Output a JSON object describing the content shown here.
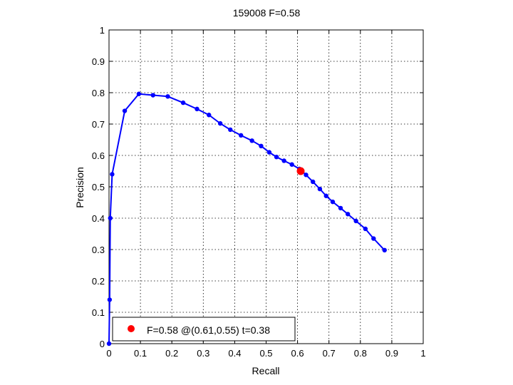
{
  "chart_data": {
    "type": "line",
    "title": "159008 F=0.58",
    "xlabel": "Recall",
    "ylabel": "Precision",
    "xlim": [
      0,
      1
    ],
    "ylim": [
      0,
      1
    ],
    "grid": true,
    "legend_position": "bottom-left",
    "x_ticks": [
      "0",
      "0.1",
      "0.2",
      "0.3",
      "0.4",
      "0.5",
      "0.6",
      "0.7",
      "0.8",
      "0.9",
      "1"
    ],
    "y_ticks": [
      "0",
      "0.1",
      "0.2",
      "0.3",
      "0.4",
      "0.5",
      "0.6",
      "0.7",
      "0.8",
      "0.9",
      "1"
    ],
    "series": [
      {
        "color": "#0000ff",
        "x": [
          0.0,
          0.002,
          0.004,
          0.01,
          0.05,
          0.095,
          0.14,
          0.187,
          0.236,
          0.28,
          0.318,
          0.354,
          0.386,
          0.42,
          0.455,
          0.484,
          0.51,
          0.533,
          0.557,
          0.582,
          0.606,
          0.627,
          0.649,
          0.671,
          0.691,
          0.712,
          0.737,
          0.76,
          0.786,
          0.816,
          0.842,
          0.877
        ],
        "y": [
          0.0,
          0.14,
          0.4,
          0.54,
          0.742,
          0.796,
          0.792,
          0.788,
          0.768,
          0.748,
          0.729,
          0.702,
          0.682,
          0.664,
          0.647,
          0.63,
          0.61,
          0.595,
          0.583,
          0.571,
          0.557,
          0.538,
          0.516,
          0.493,
          0.471,
          0.452,
          0.432,
          0.413,
          0.391,
          0.366,
          0.335,
          0.298
        ]
      }
    ],
    "highlight_point": {
      "x": 0.61,
      "y": 0.55,
      "color": "#ff0000"
    },
    "legend": {
      "label": "F=0.58 @(0.61,0.55) t=0.38",
      "marker_color": "#ff0000"
    }
  }
}
